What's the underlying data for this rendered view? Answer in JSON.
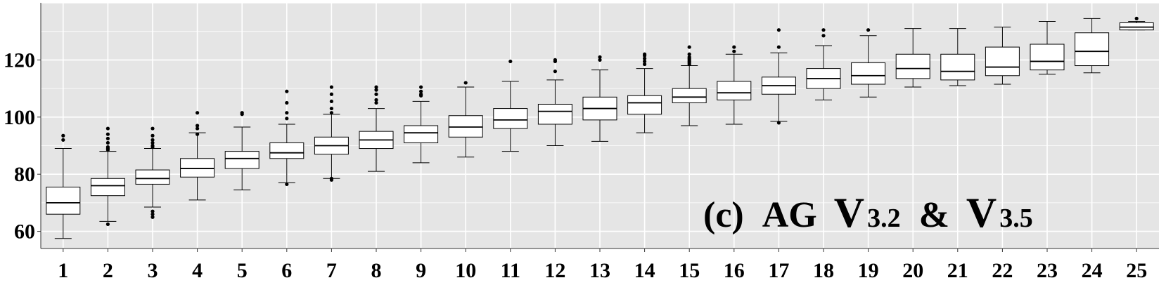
{
  "chart_data": {
    "type": "boxplot",
    "title": "",
    "xlabel": "",
    "ylabel": "",
    "ylim": [
      54,
      140
    ],
    "y_ticks": [
      60,
      80,
      100,
      120
    ],
    "grid": true,
    "annotation": {
      "prefix": "(c)",
      "text_ag": "AG",
      "v1_letter": "V",
      "v1_sub": "3.2",
      "amp": "&",
      "v2_letter": "V",
      "v2_sub": "3.5"
    },
    "categories": [
      "1",
      "2",
      "3",
      "4",
      "5",
      "6",
      "7",
      "8",
      "9",
      "10",
      "11",
      "12",
      "13",
      "14",
      "15",
      "16",
      "17",
      "18",
      "19",
      "20",
      "21",
      "22",
      "23",
      "24",
      "25"
    ],
    "boxes": [
      {
        "whisker_low": 57.5,
        "q1": 66,
        "median": 70,
        "q3": 75.5,
        "whisker_high": 89,
        "outliers": [
          92,
          93.5
        ]
      },
      {
        "whisker_low": 63.5,
        "q1": 72.5,
        "median": 76,
        "q3": 78.5,
        "whisker_high": 88,
        "outliers": [
          62.5,
          88.5,
          89,
          89.5,
          91,
          92.5,
          94,
          96
        ]
      },
      {
        "whisker_low": 68.5,
        "q1": 76.5,
        "median": 78.5,
        "q3": 81.5,
        "whisker_high": 89,
        "outliers": [
          65,
          66,
          67,
          89.5,
          90,
          91,
          92,
          93.5,
          96
        ]
      },
      {
        "whisker_low": 71,
        "q1": 79,
        "median": 82,
        "q3": 85.5,
        "whisker_high": 94.5,
        "outliers": [
          94,
          96,
          97,
          101.5
        ]
      },
      {
        "whisker_low": 74.5,
        "q1": 82,
        "median": 85.5,
        "q3": 88,
        "whisker_high": 96.5,
        "outliers": [
          101,
          101.5
        ]
      },
      {
        "whisker_low": 77,
        "q1": 85.5,
        "median": 87.5,
        "q3": 91,
        "whisker_high": 97.5,
        "outliers": [
          76.5,
          99.5,
          101.5,
          105,
          109
        ]
      },
      {
        "whisker_low": 78.5,
        "q1": 87,
        "median": 90,
        "q3": 93,
        "whisker_high": 101,
        "outliers": [
          78,
          78.5,
          101.5,
          103,
          105.5,
          108,
          110.5
        ]
      },
      {
        "whisker_low": 81,
        "q1": 89,
        "median": 92,
        "q3": 95,
        "whisker_high": 103,
        "outliers": [
          105,
          106,
          108,
          109.5,
          110.5
        ]
      },
      {
        "whisker_low": 84,
        "q1": 91,
        "median": 94.5,
        "q3": 97,
        "whisker_high": 105.5,
        "outliers": [
          107.5,
          108,
          109,
          110.5
        ]
      },
      {
        "whisker_low": 86,
        "q1": 93,
        "median": 96.5,
        "q3": 100.5,
        "whisker_high": 110.5,
        "outliers": [
          112
        ]
      },
      {
        "whisker_low": 88,
        "q1": 96,
        "median": 99,
        "q3": 103,
        "whisker_high": 112.5,
        "outliers": [
          119.5
        ]
      },
      {
        "whisker_low": 90,
        "q1": 97.5,
        "median": 102,
        "q3": 104.5,
        "whisker_high": 113,
        "outliers": [
          116,
          119.5,
          120
        ]
      },
      {
        "whisker_low": 91.5,
        "q1": 99,
        "median": 103,
        "q3": 107,
        "whisker_high": 116.5,
        "outliers": [
          120,
          121
        ]
      },
      {
        "whisker_low": 94.5,
        "q1": 101,
        "median": 105,
        "q3": 107.5,
        "whisker_high": 117,
        "outliers": [
          118.5,
          119.5,
          120.5,
          121.5,
          122
        ]
      },
      {
        "whisker_low": 97,
        "q1": 105,
        "median": 107,
        "q3": 110,
        "whisker_high": 118,
        "outliers": [
          118.5,
          119,
          119.5,
          120,
          120.5,
          121,
          122,
          124.5
        ]
      },
      {
        "whisker_low": 97.5,
        "q1": 106,
        "median": 108.5,
        "q3": 112.5,
        "whisker_high": 122,
        "outliers": [
          123,
          124.5
        ]
      },
      {
        "whisker_low": 98.5,
        "q1": 108,
        "median": 111,
        "q3": 114,
        "whisker_high": 122.5,
        "outliers": [
          98,
          124.5,
          130.5
        ]
      },
      {
        "whisker_low": 106,
        "q1": 110,
        "median": 113.5,
        "q3": 117,
        "whisker_high": 125,
        "outliers": [
          128.5,
          130.5
        ]
      },
      {
        "whisker_low": 107,
        "q1": 111.5,
        "median": 114.5,
        "q3": 119,
        "whisker_high": 128.5,
        "outliers": [
          130.5
        ]
      },
      {
        "whisker_low": 110.5,
        "q1": 113.5,
        "median": 117,
        "q3": 122,
        "whisker_high": 131,
        "outliers": []
      },
      {
        "whisker_low": 111,
        "q1": 113,
        "median": 116,
        "q3": 122,
        "whisker_high": 131,
        "outliers": []
      },
      {
        "whisker_low": 111.5,
        "q1": 114.5,
        "median": 117.5,
        "q3": 124.5,
        "whisker_high": 131.5,
        "outliers": []
      },
      {
        "whisker_low": 115,
        "q1": 116.5,
        "median": 119.5,
        "q3": 125.5,
        "whisker_high": 133.5,
        "outliers": []
      },
      {
        "whisker_low": 115.5,
        "q1": 118,
        "median": 123,
        "q3": 129.5,
        "whisker_high": 134.5,
        "outliers": []
      },
      {
        "whisker_low": 130.5,
        "q1": 130.5,
        "median": 131.5,
        "q3": 133,
        "whisker_high": 133.5,
        "outliers": [
          134.5
        ]
      }
    ]
  }
}
